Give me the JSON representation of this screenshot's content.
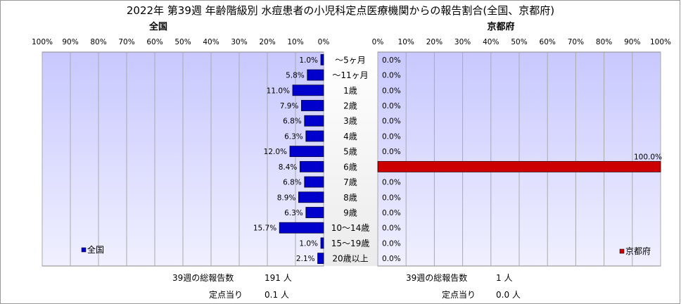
{
  "title": "2022年 第39週 年齢階級別 水痘患者の小児科定点医療機関からの報告割合(全国、京都府)",
  "chart_data": {
    "type": "bar",
    "orientation": "horizontal",
    "categories": [
      "～5ヶ月",
      "～11ヶ月",
      "1歳",
      "2歳",
      "3歳",
      "4歳",
      "5歳",
      "6歳",
      "7歳",
      "8歳",
      "9歳",
      "10～14歳",
      "15～19歳",
      "20歳以上"
    ],
    "xlim": [
      0,
      100
    ],
    "tick_labels": [
      "0%",
      "10%",
      "20%",
      "30%",
      "40%",
      "50%",
      "60%",
      "70%",
      "80%",
      "90%",
      "100%"
    ],
    "grid": true,
    "series": [
      {
        "name": "全国",
        "panel_title": "全国",
        "direction": "left",
        "color": "#0000cc",
        "values": [
          1.0,
          5.8,
          11.0,
          7.9,
          6.8,
          6.3,
          12.0,
          8.4,
          6.8,
          8.9,
          6.3,
          15.7,
          1.0,
          2.1
        ],
        "labels": [
          "1.0%",
          "5.8%",
          "11.0%",
          "7.9%",
          "6.8%",
          "6.3%",
          "12.0%",
          "8.4%",
          "6.8%",
          "8.9%",
          "6.3%",
          "15.7%",
          "1.0%",
          "2.1%"
        ],
        "legend": "全国",
        "legend_position": "bottom-left"
      },
      {
        "name": "京都府",
        "panel_title": "京都府",
        "direction": "right",
        "color": "#cc0000",
        "values": [
          0.0,
          0.0,
          0.0,
          0.0,
          0.0,
          0.0,
          0.0,
          100.0,
          0.0,
          0.0,
          0.0,
          0.0,
          0.0,
          0.0
        ],
        "labels": [
          "0.0%",
          "0.0%",
          "0.0%",
          "0.0%",
          "0.0%",
          "0.0%",
          "0.0%",
          "100.0%",
          "0.0%",
          "0.0%",
          "0.0%",
          "0.0%",
          "0.0%",
          "0.0%"
        ],
        "legend": "京都府",
        "legend_position": "bottom-right"
      }
    ]
  },
  "footer": {
    "national": {
      "total_label": "39週の総報告数",
      "total_value": "191 人",
      "per_label": "定点当り",
      "per_value": "0.1 人"
    },
    "kyoto": {
      "total_label": "39週の総報告数",
      "total_value": "1 人",
      "per_label": "定点当り",
      "per_value": "0.0 人"
    }
  }
}
